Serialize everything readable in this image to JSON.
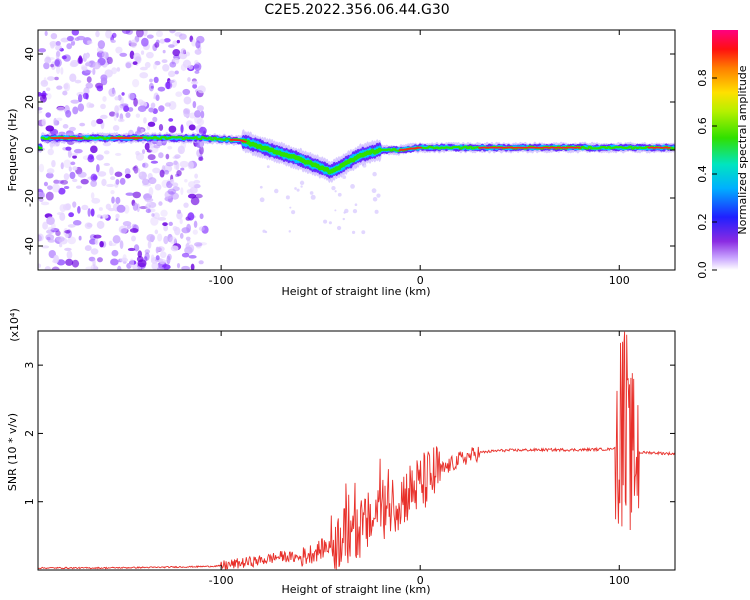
{
  "title": "C2E5.2022.356.06.44.G30",
  "colors": {
    "snr_line": "#e8302a",
    "axis": "#000000",
    "spectrogram_low": "#7a00ff",
    "spectrogram_high": "#ff0000"
  },
  "chart_data": [
    {
      "type": "heatmap",
      "xlabel": "Height of straight line (km)",
      "ylabel": "Frequency (Hz)",
      "xlim": [
        -192,
        128
      ],
      "ylim": [
        -50,
        50
      ],
      "xticks": [
        -100,
        0,
        100
      ],
      "yticks": [
        -40,
        -20,
        0,
        20,
        40
      ],
      "colorbar": {
        "label": "Normalized spectral amplitude",
        "range": [
          0.0,
          1.0
        ],
        "ticks": [
          0.0,
          0.2,
          0.4,
          0.6,
          0.8
        ],
        "colormap": "rainbow (purple-blue-cyan-green-yellow-red-pink)"
      },
      "grid": false,
      "noise_region_x": [
        -192,
        -108
      ],
      "ridge": [
        {
          "x": -190,
          "f": 5
        },
        {
          "x": -150,
          "f": 5
        },
        {
          "x": -110,
          "f": 5
        },
        {
          "x": -90,
          "f": 4
        },
        {
          "x": -75,
          "f": 0
        },
        {
          "x": -60,
          "f": -4
        },
        {
          "x": -45,
          "f": -9
        },
        {
          "x": -38,
          "f": -6
        },
        {
          "x": -30,
          "f": -2
        },
        {
          "x": -20,
          "f": 0
        },
        {
          "x": -10,
          "f": 0
        },
        {
          "x": 0,
          "f": 1
        },
        {
          "x": 30,
          "f": 1
        },
        {
          "x": 60,
          "f": 1
        },
        {
          "x": 90,
          "f": 1
        },
        {
          "x": 110,
          "f": 1
        },
        {
          "x": 128,
          "f": 1
        }
      ]
    },
    {
      "type": "line",
      "xlabel": "Height of straight line (km)",
      "ylabel": "SNR (10 * v/v)",
      "yscale_note": "(x10⁴)",
      "xlim": [
        -192,
        128
      ],
      "ylim": [
        0,
        3.5
      ],
      "xticks": [
        -100,
        0,
        100
      ],
      "yticks": [
        1,
        2,
        3
      ],
      "grid": false,
      "series": [
        {
          "points": [
            [
              -192,
              0.03
            ],
            [
              -160,
              0.03
            ],
            [
              -130,
              0.04
            ],
            [
              -110,
              0.05
            ],
            [
              -100,
              0.06
            ],
            [
              -90,
              0.1
            ],
            [
              -80,
              0.14
            ],
            [
              -70,
              0.2
            ],
            [
              -60,
              0.18
            ],
            [
              -50,
              0.3
            ],
            [
              -40,
              0.45
            ],
            [
              -30,
              0.6
            ],
            [
              -20,
              0.85
            ],
            [
              -10,
              1.05
            ],
            [
              0,
              1.25
            ],
            [
              10,
              1.45
            ],
            [
              20,
              1.62
            ],
            [
              30,
              1.72
            ],
            [
              40,
              1.75
            ],
            [
              60,
              1.76
            ],
            [
              80,
              1.76
            ],
            [
              95,
              1.77
            ],
            [
              100,
              1.8
            ],
            [
              105,
              1.7
            ],
            [
              110,
              1.72
            ],
            [
              115,
              1.72
            ],
            [
              128,
              1.7
            ]
          ]
        }
      ]
    }
  ]
}
